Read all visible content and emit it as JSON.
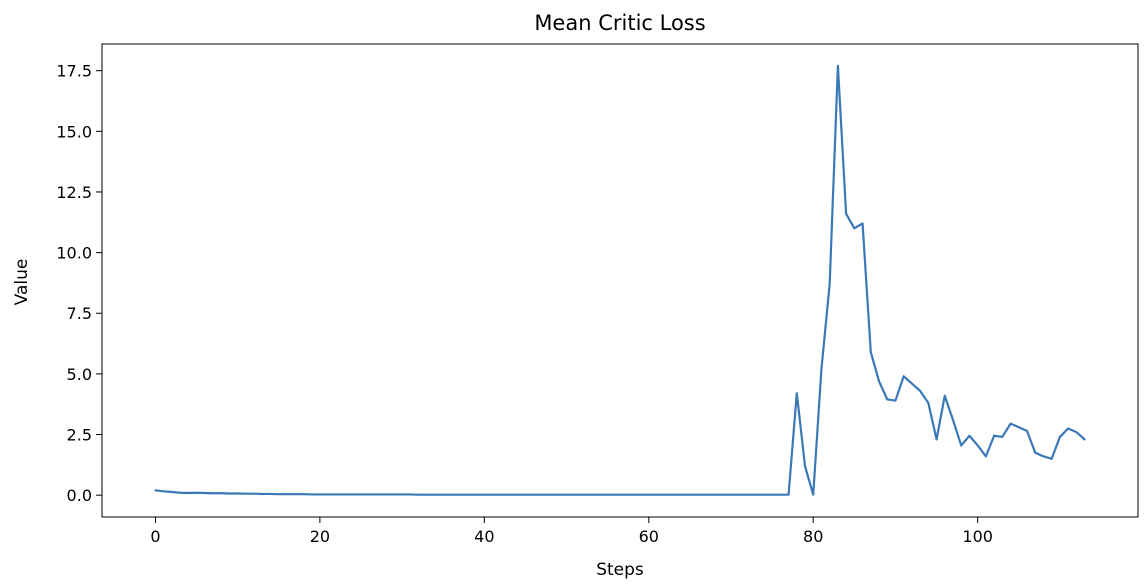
{
  "chart_data": {
    "type": "line",
    "title": "Mean Critic Loss",
    "xlabel": "Steps",
    "ylabel": "Value",
    "xlim": [
      -6.5,
      119.5
    ],
    "ylim": [
      -0.9,
      18.6
    ],
    "xticks": [
      0,
      20,
      40,
      60,
      80,
      100
    ],
    "xtick_labels": [
      "0",
      "20",
      "40",
      "60",
      "80",
      "100"
    ],
    "yticks": [
      0.0,
      2.5,
      5.0,
      7.5,
      10.0,
      12.5,
      15.0,
      17.5
    ],
    "ytick_labels": [
      "0.0",
      "2.5",
      "5.0",
      "7.5",
      "10.0",
      "12.5",
      "15.0",
      "17.5"
    ],
    "grid": false,
    "legend": "none",
    "line_color": "#3b78b8",
    "series": [
      {
        "x": [
          0,
          1,
          2,
          3,
          4,
          5,
          6,
          7,
          8,
          9,
          10,
          11,
          12,
          13,
          14,
          15,
          16,
          17,
          18,
          19,
          20,
          21,
          22,
          23,
          24,
          25,
          26,
          27,
          28,
          29,
          30,
          31,
          32,
          33,
          34,
          35,
          36,
          37,
          38,
          39,
          40,
          41,
          42,
          43,
          44,
          45,
          46,
          47,
          48,
          49,
          50,
          51,
          52,
          53,
          54,
          55,
          56,
          57,
          58,
          59,
          60,
          61,
          62,
          63,
          64,
          65,
          66,
          67,
          68,
          69,
          70,
          71,
          72,
          73,
          74,
          75,
          76,
          77,
          78,
          79,
          80,
          81,
          82,
          83,
          84,
          85,
          86,
          87,
          88,
          89,
          90,
          91,
          92,
          93,
          94,
          95,
          96,
          97,
          98,
          99,
          100,
          101,
          102,
          103,
          104,
          105,
          106,
          107,
          108,
          109,
          110,
          111,
          112,
          113
        ],
        "values": [
          0.2,
          0.16,
          0.13,
          0.1,
          0.09,
          0.1,
          0.09,
          0.08,
          0.08,
          0.07,
          0.07,
          0.06,
          0.06,
          0.05,
          0.05,
          0.04,
          0.04,
          0.04,
          0.04,
          0.03,
          0.03,
          0.03,
          0.03,
          0.03,
          0.03,
          0.03,
          0.03,
          0.03,
          0.03,
          0.03,
          0.03,
          0.03,
          0.02,
          0.02,
          0.02,
          0.02,
          0.02,
          0.02,
          0.02,
          0.02,
          0.02,
          0.02,
          0.02,
          0.02,
          0.02,
          0.02,
          0.02,
          0.02,
          0.02,
          0.02,
          0.02,
          0.02,
          0.02,
          0.02,
          0.02,
          0.02,
          0.02,
          0.02,
          0.02,
          0.02,
          0.02,
          0.02,
          0.02,
          0.02,
          0.02,
          0.02,
          0.02,
          0.02,
          0.02,
          0.02,
          0.02,
          0.02,
          0.02,
          0.02,
          0.02,
          0.02,
          0.02,
          0.02,
          4.2,
          1.2,
          0.02,
          5.2,
          8.7,
          17.7,
          11.6,
          11.0,
          11.2,
          5.9,
          4.7,
          3.95,
          3.9,
          4.9,
          4.6,
          4.3,
          3.8,
          2.3,
          4.1,
          3.1,
          2.05,
          2.45,
          2.05,
          1.6,
          2.45,
          2.4,
          2.95,
          2.8,
          2.65,
          1.75,
          1.6,
          1.5,
          2.4,
          2.75,
          2.6,
          2.3
        ]
      }
    ]
  }
}
